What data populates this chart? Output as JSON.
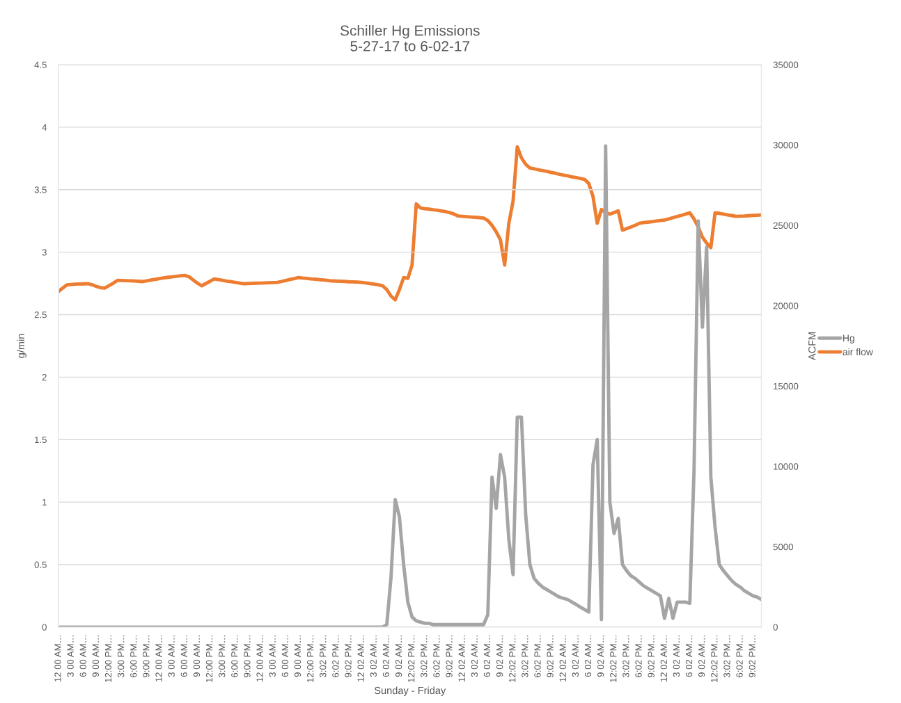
{
  "chart_data": {
    "type": "line",
    "title": "Schiller Hg Emissions\n5-27-17 to 6-02-17",
    "xlabel": "Sunday - Friday",
    "ylabel": "g/min",
    "y2label": "ACFM",
    "ylim": [
      0,
      4.5
    ],
    "yticks": [
      0,
      0.5,
      1,
      1.5,
      2,
      2.5,
      3,
      3.5,
      4,
      4.5
    ],
    "y2lim": [
      0,
      35000
    ],
    "y2ticks": [
      0,
      5000,
      10000,
      15000,
      20000,
      25000,
      30000,
      35000
    ],
    "categories": [
      "12 00 AM…",
      null,
      null,
      "3 00 AM…",
      null,
      null,
      "6 00 AM…",
      null,
      null,
      "9 00 AM…",
      null,
      null,
      "12:00 PM…",
      null,
      null,
      "3:00 PM…",
      null,
      null,
      "6:00 PM…",
      null,
      null,
      "9:00 PM…",
      null,
      null,
      "12 00 AM…",
      null,
      null,
      "3 00 AM…",
      null,
      null,
      "6 00 AM…",
      null,
      null,
      "9 00 AM…",
      null,
      null,
      "12:00 PM…",
      null,
      null,
      "3:00 PM…",
      null,
      null,
      "6:00 PM…",
      null,
      null,
      "9:00 PM…",
      null,
      null,
      "12 00 AM…",
      null,
      null,
      "3 00 AM…",
      null,
      null,
      "6 00 AM…",
      null,
      null,
      "9 00 AM…",
      null,
      null,
      "12:00 PM…",
      null,
      null,
      "3:02 PM…",
      null,
      null,
      "6:02 PM…",
      null,
      null,
      "9:02 PM…",
      null,
      null,
      "12 02 AM…",
      null,
      null,
      "3 02 AM…",
      null,
      null,
      "6 02 AM…",
      null,
      null,
      "9 02 AM…",
      null,
      null,
      "12:02 PM…",
      null,
      null,
      "3:02 PM…",
      null,
      null,
      "6:02 PM…",
      null,
      null,
      "9:02 PM…",
      null,
      null,
      "12 02 AM…",
      null,
      null,
      "3 02 AM…",
      null,
      null,
      "6 02 AM…",
      null,
      null,
      "9 02 AM…",
      null,
      null,
      "12:02 PM…",
      null,
      null,
      "3:02 PM…",
      null,
      null,
      "6:02 PM…",
      null,
      null,
      "9:02 PM…",
      null,
      null,
      "12 02 AM…",
      null,
      null,
      "3 02 AM…",
      null,
      null,
      "6 02 AM…",
      null,
      null,
      "9 02 AM…",
      null,
      null,
      "12:02 PM…",
      null,
      null,
      "3:02 PM…",
      null,
      null,
      "6:02 PM…",
      null,
      null,
      "9:02 PM…",
      null,
      null,
      "12 02 AM…",
      null,
      null,
      "3 02 AM…",
      null,
      null,
      "6 02 AM…",
      null,
      null,
      "9 02 AM…",
      null,
      null,
      "12:02 PM…",
      null,
      null,
      "3:02 PM…",
      null,
      null,
      "6:02 PM…",
      null,
      null,
      "9:02 PM…",
      null,
      null
    ],
    "grid": "y",
    "legend": "right",
    "marker": "none",
    "line_style": "solid",
    "series": [
      {
        "name": "Hg",
        "color": "#a5a5a5",
        "values": [
          0,
          0,
          0,
          0,
          0,
          0,
          0,
          0,
          0,
          0,
          0,
          0,
          0,
          0,
          0,
          0,
          0,
          0,
          0,
          0,
          0,
          0,
          0,
          0,
          0,
          0,
          0,
          0,
          0,
          0,
          0,
          0,
          0,
          0,
          0,
          0,
          0,
          0,
          0,
          0,
          0,
          0,
          0,
          0,
          0,
          0,
          0,
          0,
          0,
          0,
          0,
          0,
          0,
          0,
          0,
          0,
          0,
          0,
          0,
          0,
          0,
          0,
          0,
          0,
          0,
          0,
          0,
          0,
          0,
          0,
          0,
          0,
          0,
          0,
          0,
          0,
          0,
          0,
          0.02,
          0.4,
          1.02,
          0.88,
          0.5,
          0.2,
          0.08,
          0.05,
          0.04,
          0.03,
          0.03,
          0.02,
          0.02,
          0.02,
          0.02,
          0.02,
          0.02,
          0.02,
          0.02,
          0.02,
          0.02,
          0.02,
          0.02,
          0.02,
          0.1,
          1.2,
          0.95,
          1.38,
          1.2,
          0.7,
          0.42,
          1.68,
          1.68,
          0.9,
          0.5,
          0.39,
          0.35,
          0.32,
          0.3,
          0.28,
          0.26,
          0.24,
          0.23,
          0.22,
          0.2,
          0.18,
          0.16,
          0.14,
          0.12,
          1.3,
          1.5,
          0.06,
          3.85,
          1.0,
          0.75,
          0.87,
          0.5,
          0.45,
          0.41,
          0.39,
          0.36,
          0.33,
          0.31,
          0.29,
          0.27,
          0.25,
          0.07,
          0.23,
          0.07,
          0.2,
          0.2,
          0.2,
          0.19,
          1.25,
          3.25,
          2.4,
          3.04,
          1.2,
          0.8,
          0.5,
          0.45,
          0.41,
          0.37,
          0.34,
          0.32,
          0.29,
          0.27,
          0.25,
          0.24,
          0.22
        ]
      },
      {
        "name": "air flow",
        "axis": "y2",
        "color": "#ed7d31",
        "values": [
          20890,
          21100,
          21300,
          21320,
          21340,
          21350,
          21360,
          21370,
          21300,
          21200,
          21120,
          21100,
          21250,
          21400,
          21580,
          21570,
          21560,
          21550,
          21540,
          21520,
          21500,
          21550,
          21600,
          21640,
          21690,
          21730,
          21770,
          21800,
          21830,
          21860,
          21880,
          21800,
          21600,
          21400,
          21240,
          21380,
          21520,
          21670,
          21620,
          21580,
          21530,
          21490,
          21450,
          21410,
          21370,
          21380,
          21390,
          21400,
          21410,
          21420,
          21430,
          21440,
          21450,
          21510,
          21570,
          21630,
          21690,
          21750,
          21720,
          21700,
          21670,
          21650,
          21620,
          21600,
          21570,
          21540,
          21530,
          21520,
          21510,
          21490,
          21480,
          21470,
          21450,
          21420,
          21380,
          21340,
          21300,
          21240,
          21000,
          20600,
          20370,
          21000,
          21750,
          21700,
          22530,
          26340,
          26080,
          26040,
          26010,
          25970,
          25940,
          25900,
          25850,
          25790,
          25700,
          25580,
          25560,
          25540,
          25520,
          25500,
          25480,
          25450,
          25300,
          25000,
          24600,
          24100,
          22530,
          25130,
          26500,
          29890,
          29200,
          28800,
          28570,
          28520,
          28460,
          28410,
          28360,
          28300,
          28250,
          28180,
          28130,
          28080,
          28020,
          27970,
          27920,
          27860,
          27600,
          26800,
          25130,
          25990,
          25800,
          25700,
          25800,
          25900,
          24700,
          24800,
          24900,
          25000,
          25130,
          25170,
          25200,
          25230,
          25270,
          25300,
          25330,
          25400,
          25480,
          25550,
          25620,
          25700,
          25780,
          25400,
          24900,
          24260,
          23900,
          23610,
          25780,
          25750,
          25700,
          25650,
          25610,
          25560,
          25570,
          25580,
          25600,
          25620,
          25630,
          25650
        ]
      }
    ]
  }
}
